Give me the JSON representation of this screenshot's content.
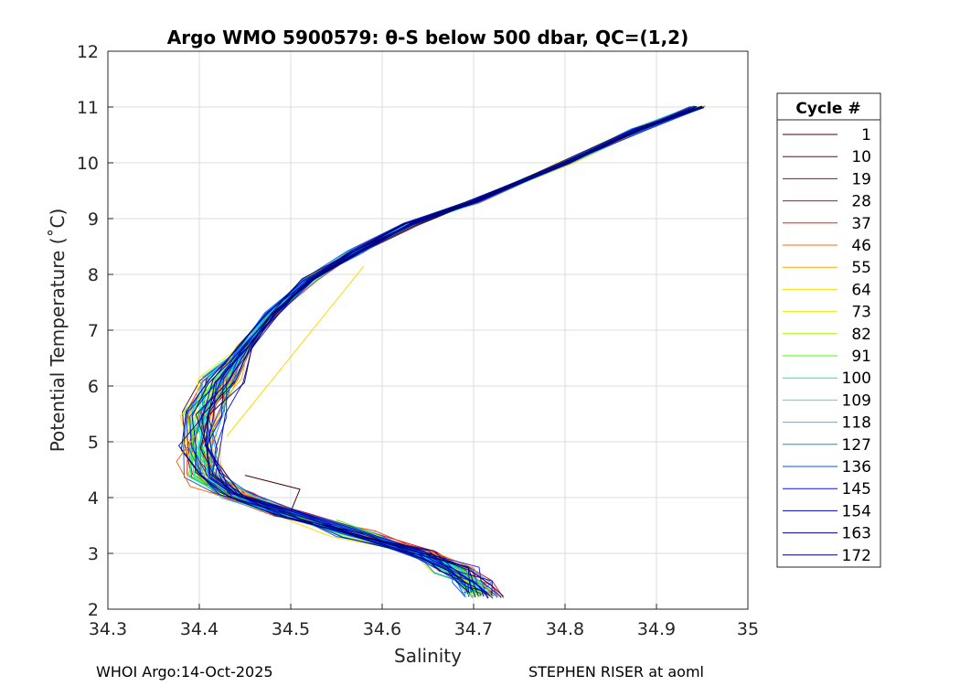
{
  "chart_data": {
    "type": "line",
    "title": "Argo WMO 5900579: θ-S below 500 dbar,  QC=(1,2)",
    "xlabel": "Salinity",
    "ylabel": "Potential Temperature (˚C)",
    "xlim": [
      34.3,
      35
    ],
    "ylim": [
      2,
      12
    ],
    "xticks": [
      "34.3",
      "34.4",
      "34.5",
      "34.6",
      "34.7",
      "34.8",
      "34.9",
      "35"
    ],
    "yticks": [
      "2",
      "3",
      "4",
      "5",
      "6",
      "7",
      "8",
      "9",
      "10",
      "11",
      "12"
    ],
    "xtick_values": [
      34.3,
      34.4,
      34.5,
      34.6,
      34.7,
      34.8,
      34.9,
      35.0
    ],
    "ytick_values": [
      2,
      3,
      4,
      5,
      6,
      7,
      8,
      9,
      10,
      11,
      12
    ],
    "grid": true,
    "legend": {
      "title": "Cycle #",
      "placement": "right-outside",
      "entries": [
        {
          "label": "1",
          "color": "#4d0000"
        },
        {
          "label": "10",
          "color": "#8a0000"
        },
        {
          "label": "19",
          "color": "#c00000"
        },
        {
          "label": "28",
          "color": "#e00000"
        },
        {
          "label": "37",
          "color": "#ff1a00"
        },
        {
          "label": "46",
          "color": "#ff6a00"
        },
        {
          "label": "55",
          "color": "#ffa600"
        },
        {
          "label": "64",
          "color": "#ffd800"
        },
        {
          "label": "73",
          "color": "#e6f000"
        },
        {
          "label": "82",
          "color": "#a6ff00"
        },
        {
          "label": "91",
          "color": "#3cff00"
        },
        {
          "label": "100",
          "color": "#00ff7a"
        },
        {
          "label": "109",
          "color": "#00ffc8"
        },
        {
          "label": "118",
          "color": "#00d2ff"
        },
        {
          "label": "127",
          "color": "#0090ff"
        },
        {
          "label": "136",
          "color": "#0050ff"
        },
        {
          "label": "145",
          "color": "#0014ff"
        },
        {
          "label": "154",
          "color": "#0000c8"
        },
        {
          "label": "163",
          "color": "#00008c"
        },
        {
          "label": "172",
          "color": "#000064"
        }
      ]
    },
    "base_profile": [
      {
        "s": 34.945,
        "t": 11.0
      },
      {
        "s": 34.88,
        "t": 10.6
      },
      {
        "s": 34.8,
        "t": 10.0
      },
      {
        "s": 34.7,
        "t": 9.3
      },
      {
        "s": 34.63,
        "t": 8.9
      },
      {
        "s": 34.57,
        "t": 8.4
      },
      {
        "s": 34.52,
        "t": 7.9
      },
      {
        "s": 34.48,
        "t": 7.3
      },
      {
        "s": 34.45,
        "t": 6.7
      },
      {
        "s": 34.425,
        "t": 6.1
      },
      {
        "s": 34.405,
        "t": 5.5
      },
      {
        "s": 34.4,
        "t": 4.9
      },
      {
        "s": 34.41,
        "t": 4.4
      },
      {
        "s": 34.44,
        "t": 4.05
      },
      {
        "s": 34.5,
        "t": 3.7
      },
      {
        "s": 34.57,
        "t": 3.35
      },
      {
        "s": 34.64,
        "t": 3.0
      },
      {
        "s": 34.68,
        "t": 2.7
      },
      {
        "s": 34.7,
        "t": 2.45
      },
      {
        "s": 34.71,
        "t": 2.25
      }
    ],
    "anomalies": [
      {
        "color": "#ffd800",
        "points": [
          {
            "s": 34.58,
            "t": 8.15
          },
          {
            "s": 34.43,
            "t": 5.1
          }
        ]
      },
      {
        "color": "#ff6a00",
        "points": [
          {
            "s": 34.4,
            "t": 5.2
          },
          {
            "s": 34.375,
            "t": 4.65
          },
          {
            "s": 34.39,
            "t": 4.2
          },
          {
            "s": 34.44,
            "t": 3.95
          }
        ]
      },
      {
        "color": "#4d0000",
        "points": [
          {
            "s": 34.45,
            "t": 4.4
          },
          {
            "s": 34.51,
            "t": 4.15
          },
          {
            "s": 34.5,
            "t": 3.75
          }
        ]
      },
      {
        "color": "#3cff00",
        "points": [
          {
            "s": 34.55,
            "t": 3.6
          },
          {
            "s": 34.6,
            "t": 3.3
          }
        ]
      }
    ]
  },
  "footer": {
    "left": "WHOI Argo:14-Oct-2025",
    "right": "STEPHEN RISER at aoml"
  }
}
